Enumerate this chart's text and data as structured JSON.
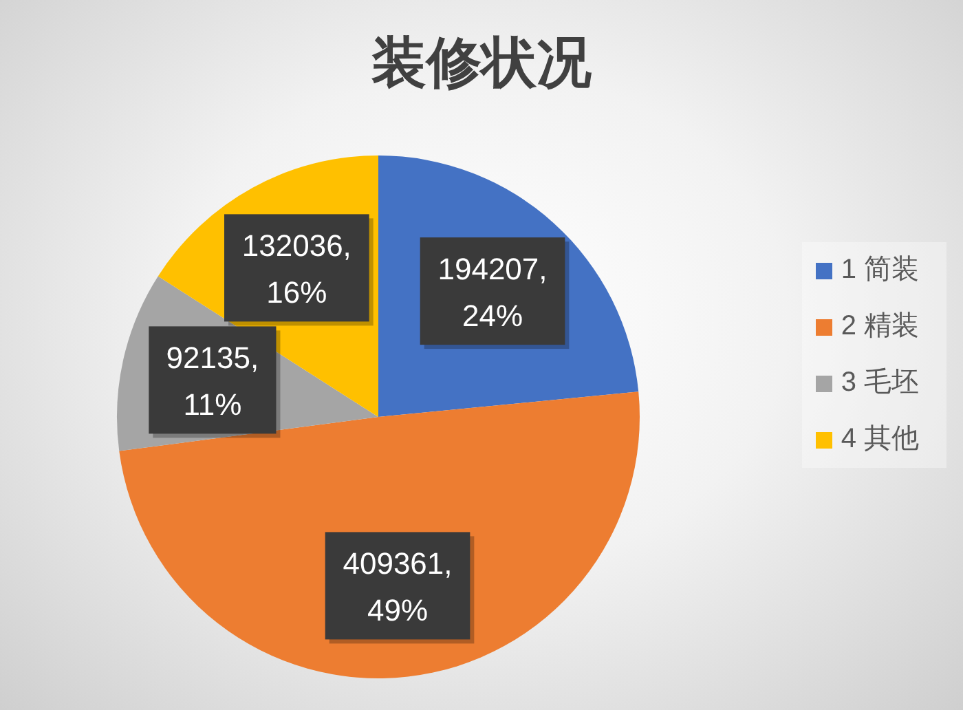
{
  "chart_data": {
    "type": "pie",
    "title": "装修状况",
    "categories": [
      "1 简装",
      "2 精装",
      "3 毛坯",
      "4 其他"
    ],
    "values": [
      194207,
      409361,
      92135,
      132036
    ],
    "colors": [
      "#4472c4",
      "#ed7d31",
      "#a5a5a5",
      "#ffc000"
    ],
    "value_labels": [
      "194207,\n24%",
      "409361,\n49%",
      "92135,\n11%",
      "132036,\n16%"
    ],
    "legend": "right"
  }
}
